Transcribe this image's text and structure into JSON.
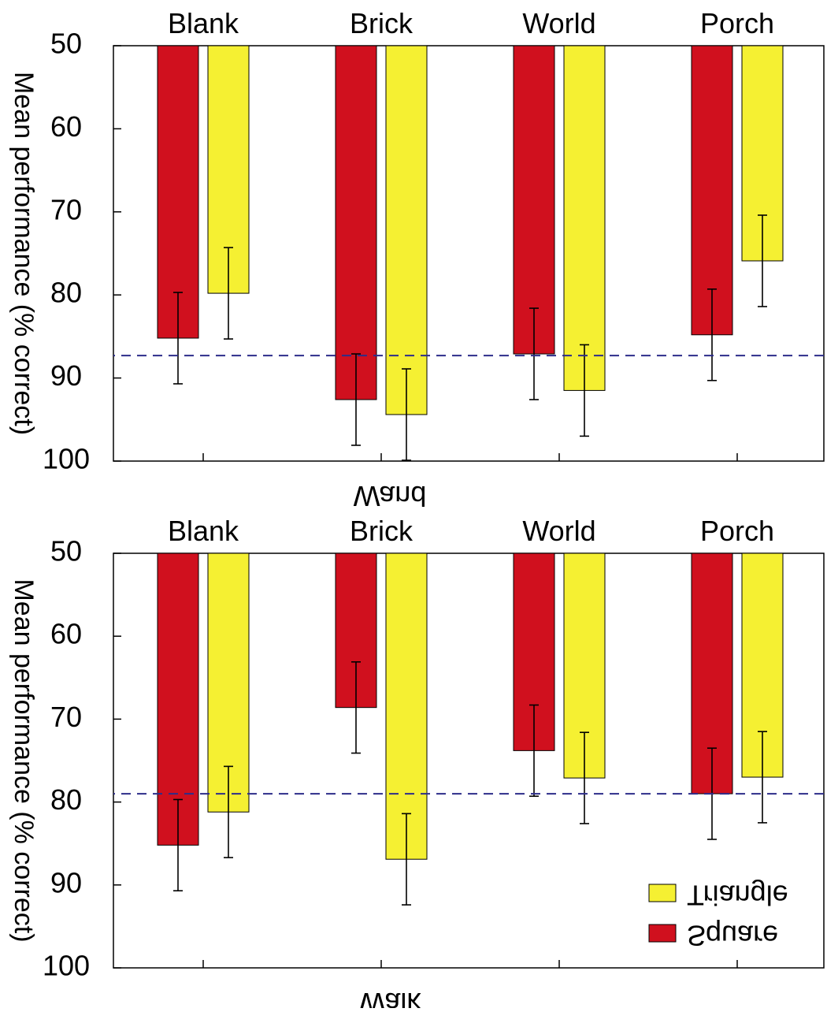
{
  "chart_data": [
    {
      "type": "bar",
      "panel": "top",
      "xlabel": "Wand",
      "ylabel": "Mean performance (% correct)",
      "ylim": [
        50,
        100
      ],
      "yticks": [
        50,
        60,
        70,
        80,
        90,
        100
      ],
      "categories": [
        "Blank",
        "Brick",
        "World",
        "Porch"
      ],
      "reference_line": 87.3,
      "series": [
        {
          "name": "Square",
          "color": "#d0101e",
          "values": [
            85.2,
            92.6,
            87.1,
            84.8
          ],
          "errors": [
            5.5,
            5.5,
            5.5,
            5.5
          ]
        },
        {
          "name": "Triangle",
          "color": "#f5f032",
          "values": [
            79.8,
            94.4,
            91.5,
            75.9
          ],
          "errors": [
            5.5,
            5.5,
            5.5,
            5.5
          ]
        }
      ]
    },
    {
      "type": "bar",
      "panel": "bottom",
      "xlabel": "Walk",
      "ylabel": "Mean performance (% correct)",
      "ylim": [
        50,
        100
      ],
      "yticks": [
        50,
        60,
        70,
        80,
        90,
        100
      ],
      "categories": [
        "Blank",
        "Brick",
        "World",
        "Porch"
      ],
      "reference_line": 79.0,
      "legend": [
        "Triangle",
        "Square"
      ],
      "series": [
        {
          "name": "Square",
          "color": "#d0101e",
          "values": [
            85.2,
            68.6,
            73.8,
            79.0
          ],
          "errors": [
            5.5,
            5.5,
            5.5,
            5.5
          ]
        },
        {
          "name": "Triangle",
          "color": "#f5f032",
          "values": [
            81.2,
            86.9,
            77.1,
            77.0
          ],
          "errors": [
            5.5,
            5.5,
            5.5,
            5.5
          ]
        }
      ]
    }
  ]
}
